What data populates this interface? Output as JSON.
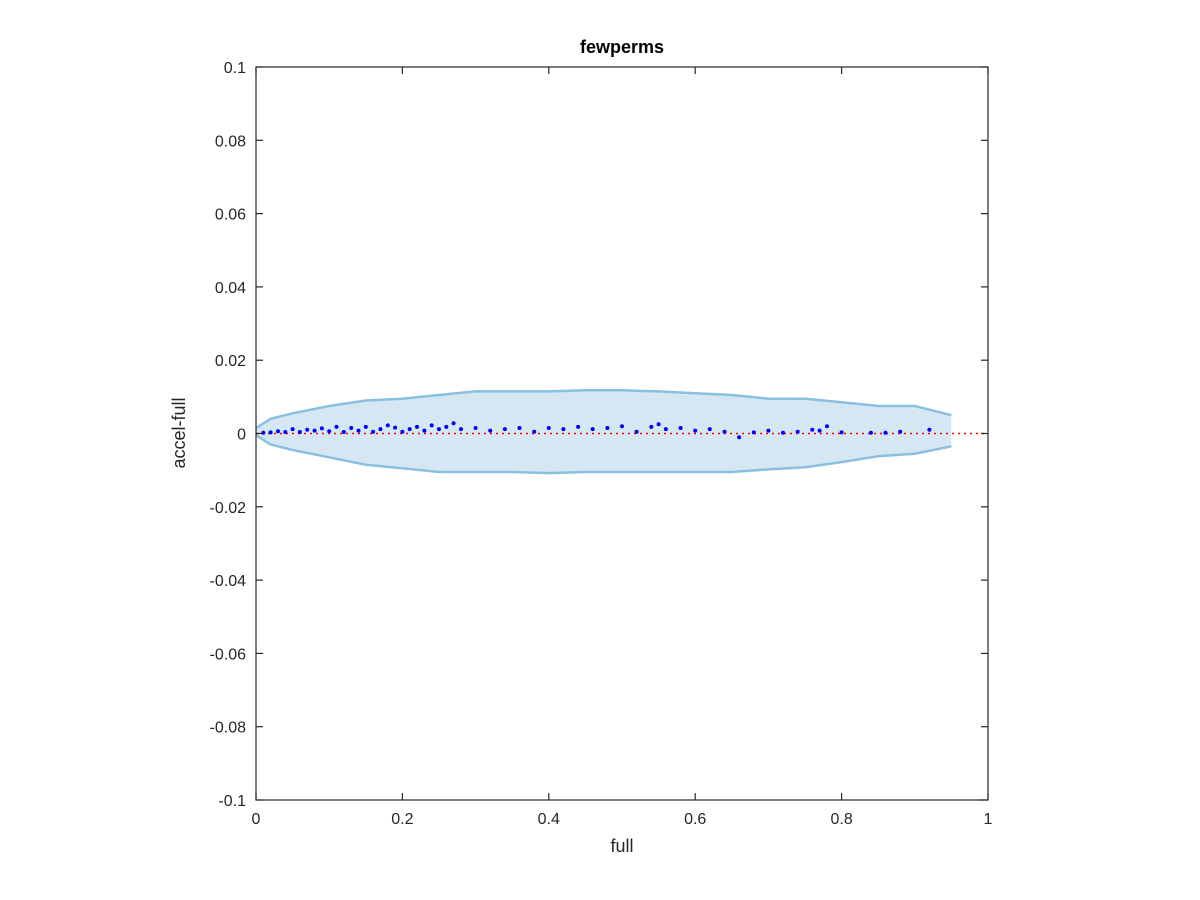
{
  "chart_data": {
    "type": "scatter",
    "title": "fewperms",
    "xlabel": "full",
    "ylabel": "accel-full",
    "xlim": [
      0,
      1
    ],
    "ylim": [
      -0.1,
      0.1
    ],
    "xticks": [
      "0",
      "0.2",
      "0.4",
      "0.6",
      "0.8",
      "1"
    ],
    "yticks": [
      "-0.1",
      "-0.08",
      "-0.06",
      "-0.04",
      "-0.02",
      "0",
      "0.02",
      "0.04",
      "0.06",
      "0.08",
      "0.1"
    ],
    "grid": false,
    "legend": "none",
    "colors": {
      "points": "#0000ff",
      "band_fill": "#d6e7f4",
      "band_edge": "#8bbfe0",
      "reference_line": "#ff0000"
    },
    "reference_line": {
      "y": 0,
      "style": "dotted"
    },
    "envelope": {
      "x": [
        0.0,
        0.02,
        0.05,
        0.1,
        0.15,
        0.2,
        0.25,
        0.3,
        0.35,
        0.4,
        0.45,
        0.5,
        0.55,
        0.6,
        0.65,
        0.7,
        0.75,
        0.8,
        0.85,
        0.9,
        0.95
      ],
      "upper": [
        0.0015,
        0.004,
        0.0055,
        0.0075,
        0.009,
        0.0095,
        0.0105,
        0.0115,
        0.0115,
        0.0115,
        0.0118,
        0.0118,
        0.0115,
        0.011,
        0.0105,
        0.0095,
        0.0095,
        0.0085,
        0.0075,
        0.0075,
        0.005
      ],
      "lower": [
        -0.0005,
        -0.003,
        -0.0045,
        -0.0065,
        -0.0085,
        -0.0095,
        -0.0105,
        -0.0105,
        -0.0105,
        -0.0108,
        -0.0105,
        -0.0105,
        -0.0105,
        -0.0105,
        -0.0105,
        -0.0098,
        -0.0092,
        -0.0078,
        -0.0062,
        -0.0055,
        -0.0035
      ]
    },
    "series": [
      {
        "x": [
          0.92,
          0.88,
          0.86,
          0.84,
          0.8,
          0.78,
          0.77,
          0.76,
          0.74,
          0.72,
          0.7,
          0.68,
          0.66,
          0.64,
          0.62,
          0.6,
          0.58,
          0.56,
          0.55,
          0.54,
          0.52,
          0.5,
          0.48,
          0.46,
          0.44,
          0.42,
          0.4,
          0.38,
          0.36,
          0.34,
          0.32,
          0.3,
          0.28,
          0.27,
          0.26,
          0.25,
          0.24,
          0.23,
          0.22,
          0.21,
          0.2,
          0.19,
          0.18,
          0.17,
          0.16,
          0.15,
          0.14,
          0.13,
          0.12,
          0.11,
          0.1,
          0.09,
          0.08,
          0.07,
          0.06,
          0.05,
          0.04,
          0.03,
          0.02,
          0.01
        ],
        "y": [
          0.001,
          0.0005,
          0.0002,
          0.0002,
          0.0003,
          0.002,
          0.0008,
          0.001,
          0.0005,
          0.0002,
          0.0008,
          0.0003,
          -0.001,
          0.0005,
          0.0012,
          0.0008,
          0.0015,
          0.0012,
          0.0025,
          0.0018,
          0.0005,
          0.002,
          0.0015,
          0.0012,
          0.0018,
          0.0012,
          0.0015,
          0.0005,
          0.0015,
          0.0012,
          0.0008,
          0.0015,
          0.0012,
          0.0028,
          0.0018,
          0.0012,
          0.0022,
          0.0008,
          0.0018,
          0.0012,
          0.0005,
          0.0016,
          0.0022,
          0.0012,
          0.0005,
          0.0018,
          0.0008,
          0.0015,
          0.0004,
          0.0018,
          0.0006,
          0.0014,
          0.0008,
          0.001,
          0.0004,
          0.0012,
          0.0004,
          0.0006,
          0.0003,
          0.0002
        ]
      }
    ]
  }
}
